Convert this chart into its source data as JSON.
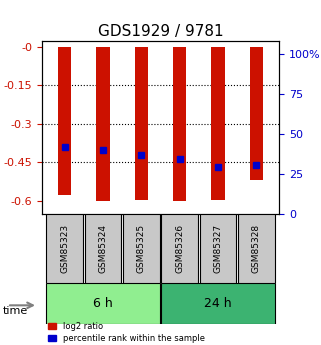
{
  "title": "GDS1929 / 9781",
  "samples": [
    "GSM85323",
    "GSM85324",
    "GSM85325",
    "GSM85326",
    "GSM85327",
    "GSM85328"
  ],
  "log2_ratio": [
    -0.575,
    -0.6,
    -0.595,
    -0.598,
    -0.595,
    -0.52
  ],
  "percentile_rank": [
    35.0,
    33.0,
    30.0,
    27.5,
    22.0,
    23.0
  ],
  "groups": [
    {
      "label": "6 h",
      "indices": [
        0,
        1,
        2
      ],
      "color": "#90EE90"
    },
    {
      "label": "24 h",
      "indices": [
        3,
        4,
        5
      ],
      "color": "#3CB371"
    }
  ],
  "ylim_left": [
    -0.65,
    0.02
  ],
  "ylim_right": [
    0,
    108
  ],
  "yticks_left": [
    0,
    -0.15,
    -0.3,
    -0.45,
    -0.6
  ],
  "yticks_right": [
    0,
    25,
    50,
    75,
    100
  ],
  "bar_color": "#CC1100",
  "point_color": "#0000CC",
  "bar_width": 0.35,
  "background_color": "#ffffff",
  "plot_bg_color": "#ffffff",
  "gridline_color": "#000000",
  "legend_labels": [
    "log2 ratio",
    "percentile rank within the sample"
  ],
  "title_fontsize": 11,
  "tick_fontsize": 8
}
